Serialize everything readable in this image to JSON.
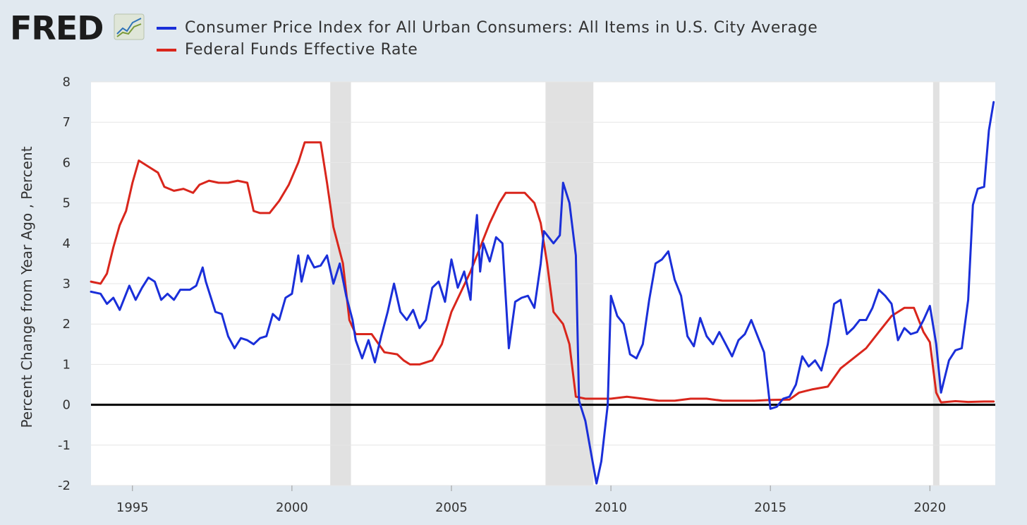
{
  "logo": {
    "text": "FRED"
  },
  "chart_data": {
    "type": "line",
    "ylabel": "Percent Change from Year Ago , Percent",
    "xlim": [
      1993.7,
      2022.05
    ],
    "ylim": [
      -2,
      8
    ],
    "yticks": [
      -2,
      -1,
      0,
      1,
      2,
      3,
      4,
      5,
      6,
      7,
      8
    ],
    "xticks": [
      1995,
      2000,
      2005,
      2010,
      2015,
      2020
    ],
    "grid": true,
    "legend_position": "top",
    "recessions": [
      [
        2001.2,
        2001.85
      ],
      [
        2007.95,
        2009.45
      ],
      [
        2020.1,
        2020.3
      ]
    ],
    "series": [
      {
        "name": "Consumer Price Index for All Urban Consumers: All Items in U.S. City Average",
        "color": "#1a2fd9",
        "points": [
          [
            1993.7,
            2.8
          ],
          [
            1994.0,
            2.75
          ],
          [
            1994.2,
            2.5
          ],
          [
            1994.4,
            2.65
          ],
          [
            1994.6,
            2.35
          ],
          [
            1994.9,
            2.95
          ],
          [
            1995.1,
            2.6
          ],
          [
            1995.3,
            2.9
          ],
          [
            1995.5,
            3.15
          ],
          [
            1995.7,
            3.05
          ],
          [
            1995.9,
            2.6
          ],
          [
            1996.1,
            2.75
          ],
          [
            1996.3,
            2.6
          ],
          [
            1996.5,
            2.85
          ],
          [
            1996.8,
            2.85
          ],
          [
            1997.0,
            2.95
          ],
          [
            1997.2,
            3.4
          ],
          [
            1997.3,
            3.05
          ],
          [
            1997.6,
            2.3
          ],
          [
            1997.8,
            2.25
          ],
          [
            1998.0,
            1.7
          ],
          [
            1998.2,
            1.4
          ],
          [
            1998.4,
            1.65
          ],
          [
            1998.6,
            1.6
          ],
          [
            1998.8,
            1.5
          ],
          [
            1999.0,
            1.65
          ],
          [
            1999.2,
            1.7
          ],
          [
            1999.4,
            2.25
          ],
          [
            1999.6,
            2.1
          ],
          [
            1999.8,
            2.65
          ],
          [
            2000.0,
            2.75
          ],
          [
            2000.2,
            3.7
          ],
          [
            2000.3,
            3.05
          ],
          [
            2000.5,
            3.7
          ],
          [
            2000.7,
            3.4
          ],
          [
            2000.9,
            3.45
          ],
          [
            2001.1,
            3.7
          ],
          [
            2001.3,
            3.0
          ],
          [
            2001.5,
            3.5
          ],
          [
            2001.7,
            2.7
          ],
          [
            2001.9,
            2.1
          ],
          [
            2002.0,
            1.6
          ],
          [
            2002.2,
            1.15
          ],
          [
            2002.4,
            1.6
          ],
          [
            2002.6,
            1.05
          ],
          [
            2002.8,
            1.7
          ],
          [
            2003.0,
            2.3
          ],
          [
            2003.2,
            3.0
          ],
          [
            2003.4,
            2.3
          ],
          [
            2003.6,
            2.1
          ],
          [
            2003.8,
            2.35
          ],
          [
            2004.0,
            1.9
          ],
          [
            2004.2,
            2.1
          ],
          [
            2004.4,
            2.9
          ],
          [
            2004.6,
            3.05
          ],
          [
            2004.8,
            2.55
          ],
          [
            2005.0,
            3.6
          ],
          [
            2005.2,
            2.9
          ],
          [
            2005.4,
            3.3
          ],
          [
            2005.6,
            2.6
          ],
          [
            2005.7,
            3.9
          ],
          [
            2005.8,
            4.7
          ],
          [
            2005.9,
            3.3
          ],
          [
            2006.0,
            4.0
          ],
          [
            2006.2,
            3.55
          ],
          [
            2006.4,
            4.15
          ],
          [
            2006.6,
            4.0
          ],
          [
            2006.8,
            1.4
          ],
          [
            2007.0,
            2.55
          ],
          [
            2007.2,
            2.65
          ],
          [
            2007.4,
            2.7
          ],
          [
            2007.6,
            2.4
          ],
          [
            2007.8,
            3.5
          ],
          [
            2007.9,
            4.3
          ],
          [
            2008.2,
            4.0
          ],
          [
            2008.4,
            4.2
          ],
          [
            2008.5,
            5.5
          ],
          [
            2008.7,
            5.0
          ],
          [
            2008.9,
            3.7
          ],
          [
            2009.0,
            0.1
          ],
          [
            2009.2,
            -0.4
          ],
          [
            2009.4,
            -1.3
          ],
          [
            2009.55,
            -1.95
          ],
          [
            2009.7,
            -1.4
          ],
          [
            2009.9,
            0.0
          ],
          [
            2010.0,
            2.7
          ],
          [
            2010.2,
            2.2
          ],
          [
            2010.4,
            2.0
          ],
          [
            2010.6,
            1.25
          ],
          [
            2010.8,
            1.15
          ],
          [
            2011.0,
            1.5
          ],
          [
            2011.2,
            2.6
          ],
          [
            2011.4,
            3.5
          ],
          [
            2011.6,
            3.6
          ],
          [
            2011.8,
            3.8
          ],
          [
            2012.0,
            3.1
          ],
          [
            2012.2,
            2.7
          ],
          [
            2012.4,
            1.7
          ],
          [
            2012.6,
            1.45
          ],
          [
            2012.8,
            2.15
          ],
          [
            2013.0,
            1.7
          ],
          [
            2013.2,
            1.5
          ],
          [
            2013.4,
            1.8
          ],
          [
            2013.6,
            1.5
          ],
          [
            2013.8,
            1.2
          ],
          [
            2014.0,
            1.6
          ],
          [
            2014.2,
            1.75
          ],
          [
            2014.4,
            2.1
          ],
          [
            2014.6,
            1.7
          ],
          [
            2014.8,
            1.3
          ],
          [
            2015.0,
            -0.1
          ],
          [
            2015.2,
            -0.05
          ],
          [
            2015.4,
            0.15
          ],
          [
            2015.6,
            0.2
          ],
          [
            2015.8,
            0.5
          ],
          [
            2016.0,
            1.2
          ],
          [
            2016.2,
            0.95
          ],
          [
            2016.4,
            1.1
          ],
          [
            2016.6,
            0.85
          ],
          [
            2016.8,
            1.5
          ],
          [
            2017.0,
            2.5
          ],
          [
            2017.2,
            2.6
          ],
          [
            2017.4,
            1.75
          ],
          [
            2017.6,
            1.9
          ],
          [
            2017.8,
            2.1
          ],
          [
            2018.0,
            2.1
          ],
          [
            2018.2,
            2.4
          ],
          [
            2018.4,
            2.85
          ],
          [
            2018.6,
            2.7
          ],
          [
            2018.8,
            2.5
          ],
          [
            2019.0,
            1.6
          ],
          [
            2019.2,
            1.9
          ],
          [
            2019.4,
            1.75
          ],
          [
            2019.6,
            1.8
          ],
          [
            2019.8,
            2.1
          ],
          [
            2020.0,
            2.45
          ],
          [
            2020.2,
            1.5
          ],
          [
            2020.35,
            0.3
          ],
          [
            2020.6,
            1.1
          ],
          [
            2020.8,
            1.35
          ],
          [
            2021.0,
            1.4
          ],
          [
            2021.2,
            2.6
          ],
          [
            2021.35,
            4.95
          ],
          [
            2021.5,
            5.35
          ],
          [
            2021.7,
            5.4
          ],
          [
            2021.85,
            6.8
          ],
          [
            2022.0,
            7.5
          ]
        ]
      },
      {
        "name": "Federal Funds Effective Rate",
        "color": "#d9261c",
        "points": [
          [
            1993.7,
            3.05
          ],
          [
            1994.0,
            3.0
          ],
          [
            1994.2,
            3.25
          ],
          [
            1994.4,
            3.9
          ],
          [
            1994.6,
            4.45
          ],
          [
            1994.8,
            4.8
          ],
          [
            1995.0,
            5.5
          ],
          [
            1995.2,
            6.05
          ],
          [
            1995.5,
            5.9
          ],
          [
            1995.8,
            5.75
          ],
          [
            1996.0,
            5.4
          ],
          [
            1996.3,
            5.3
          ],
          [
            1996.6,
            5.35
          ],
          [
            1996.9,
            5.25
          ],
          [
            1997.1,
            5.45
          ],
          [
            1997.4,
            5.55
          ],
          [
            1997.7,
            5.5
          ],
          [
            1998.0,
            5.5
          ],
          [
            1998.3,
            5.55
          ],
          [
            1998.6,
            5.5
          ],
          [
            1998.8,
            4.8
          ],
          [
            1999.0,
            4.75
          ],
          [
            1999.3,
            4.75
          ],
          [
            1999.6,
            5.05
          ],
          [
            1999.9,
            5.45
          ],
          [
            2000.2,
            6.0
          ],
          [
            2000.4,
            6.5
          ],
          [
            2000.7,
            6.5
          ],
          [
            2000.9,
            6.5
          ],
          [
            2001.1,
            5.5
          ],
          [
            2001.3,
            4.4
          ],
          [
            2001.6,
            3.5
          ],
          [
            2001.8,
            2.1
          ],
          [
            2002.0,
            1.75
          ],
          [
            2002.5,
            1.75
          ],
          [
            2002.9,
            1.3
          ],
          [
            2003.3,
            1.25
          ],
          [
            2003.5,
            1.1
          ],
          [
            2003.7,
            1.0
          ],
          [
            2004.0,
            1.0
          ],
          [
            2004.4,
            1.1
          ],
          [
            2004.7,
            1.5
          ],
          [
            2005.0,
            2.3
          ],
          [
            2005.3,
            2.8
          ],
          [
            2005.6,
            3.3
          ],
          [
            2005.9,
            3.9
          ],
          [
            2006.2,
            4.5
          ],
          [
            2006.5,
            5.0
          ],
          [
            2006.7,
            5.25
          ],
          [
            2007.0,
            5.25
          ],
          [
            2007.3,
            5.25
          ],
          [
            2007.6,
            5.0
          ],
          [
            2007.8,
            4.5
          ],
          [
            2008.0,
            3.5
          ],
          [
            2008.2,
            2.3
          ],
          [
            2008.5,
            2.0
          ],
          [
            2008.7,
            1.5
          ],
          [
            2008.9,
            0.2
          ],
          [
            2009.2,
            0.15
          ],
          [
            2009.6,
            0.15
          ],
          [
            2010.0,
            0.15
          ],
          [
            2010.5,
            0.2
          ],
          [
            2011.0,
            0.15
          ],
          [
            2011.5,
            0.1
          ],
          [
            2012.0,
            0.1
          ],
          [
            2012.5,
            0.15
          ],
          [
            2013.0,
            0.15
          ],
          [
            2013.5,
            0.1
          ],
          [
            2014.0,
            0.1
          ],
          [
            2014.5,
            0.1
          ],
          [
            2015.0,
            0.12
          ],
          [
            2015.6,
            0.13
          ],
          [
            2015.9,
            0.3
          ],
          [
            2016.3,
            0.38
          ],
          [
            2016.8,
            0.45
          ],
          [
            2017.2,
            0.9
          ],
          [
            2017.6,
            1.15
          ],
          [
            2018.0,
            1.4
          ],
          [
            2018.4,
            1.8
          ],
          [
            2018.8,
            2.2
          ],
          [
            2019.2,
            2.4
          ],
          [
            2019.5,
            2.4
          ],
          [
            2019.8,
            1.8
          ],
          [
            2020.0,
            1.55
          ],
          [
            2020.2,
            0.3
          ],
          [
            2020.35,
            0.06
          ],
          [
            2020.8,
            0.09
          ],
          [
            2021.2,
            0.07
          ],
          [
            2021.7,
            0.08
          ],
          [
            2022.0,
            0.08
          ]
        ]
      }
    ]
  }
}
